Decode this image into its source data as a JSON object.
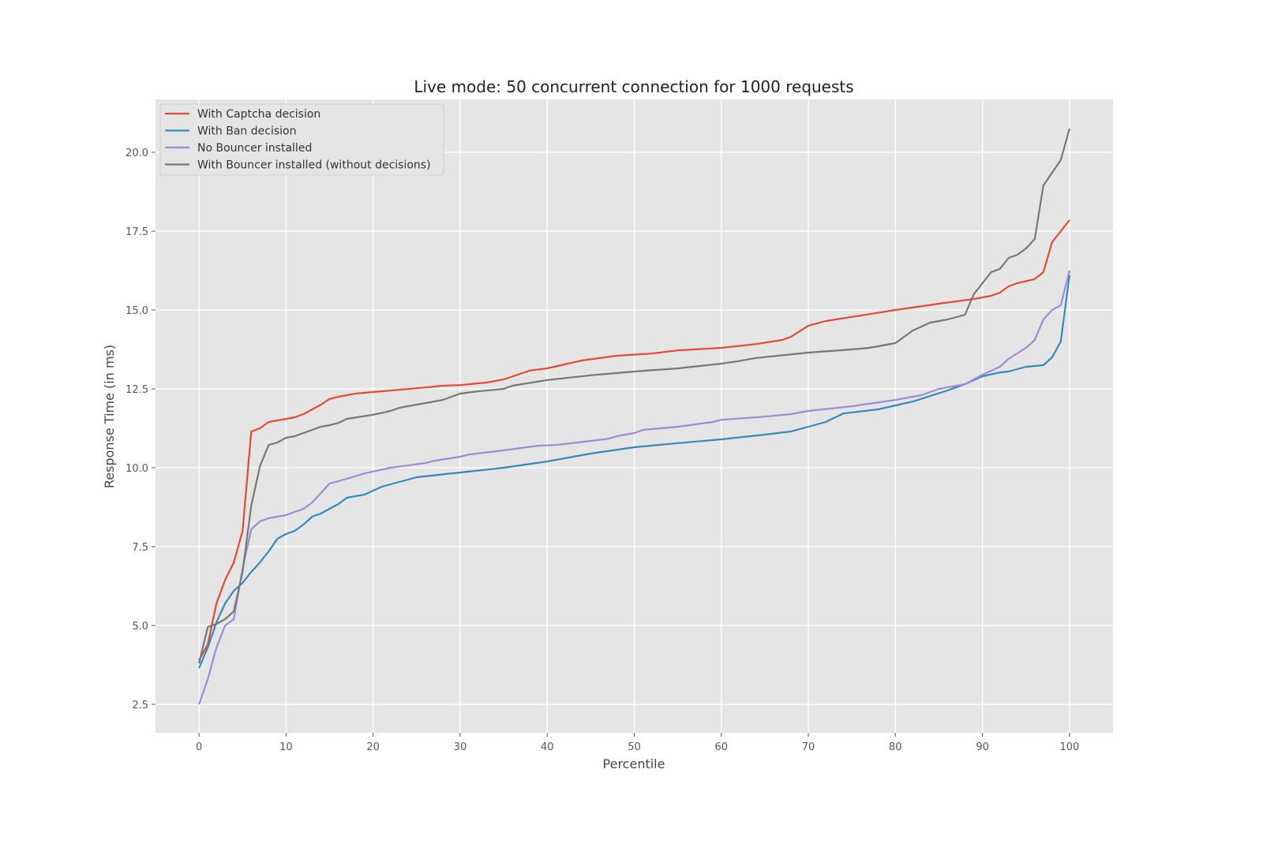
{
  "chart_data": {
    "type": "line",
    "title": "Live mode: 50 concurrent connection for 1000 requests",
    "xlabel": "Percentile",
    "ylabel": "Response Time (in ms)",
    "xlim": [
      -5,
      105
    ],
    "ylim": [
      1.6,
      21.675
    ],
    "xticks": [
      0,
      10,
      20,
      30,
      40,
      50,
      60,
      70,
      80,
      90,
      100
    ],
    "xtick_labels": [
      "0",
      "10",
      "20",
      "30",
      "40",
      "50",
      "60",
      "70",
      "80",
      "90",
      "100"
    ],
    "yticks": [
      2.5,
      5.0,
      7.5,
      10.0,
      12.5,
      15.0,
      17.5,
      20.0
    ],
    "ytick_labels": [
      "2.5",
      "5.0",
      "7.5",
      "10.0",
      "12.5",
      "15.0",
      "17.5",
      "20.0"
    ],
    "grid": true,
    "legend_position": "top-left",
    "series": [
      {
        "name": "With Captcha decision",
        "color": "#E24A33",
        "x": [
          0,
          1,
          2,
          3,
          4,
          5,
          6,
          7,
          8,
          9,
          10,
          11,
          12,
          13,
          14,
          15,
          16,
          18,
          20,
          25,
          28,
          30,
          33,
          35,
          38,
          40,
          44,
          48,
          52,
          55,
          60,
          64,
          67,
          68,
          70,
          72,
          75,
          80,
          85,
          89,
          91,
          92,
          93,
          94,
          96,
          97,
          98,
          100
        ],
        "y": [
          3.9,
          4.4,
          5.7,
          6.45,
          7.0,
          8.0,
          11.15,
          11.25,
          11.45,
          11.5,
          11.55,
          11.6,
          11.7,
          11.85,
          12.0,
          12.18,
          12.25,
          12.35,
          12.4,
          12.52,
          12.6,
          12.62,
          12.7,
          12.8,
          13.08,
          13.15,
          13.4,
          13.55,
          13.62,
          13.72,
          13.8,
          13.92,
          14.05,
          14.15,
          14.5,
          14.65,
          14.78,
          15.0,
          15.2,
          15.35,
          15.45,
          15.55,
          15.75,
          15.85,
          15.98,
          16.2,
          17.15,
          17.85
        ]
      },
      {
        "name": "With Ban decision",
        "color": "#348ABD",
        "x": [
          0,
          1,
          2,
          3,
          4,
          5,
          6,
          7,
          8,
          9,
          10,
          11,
          12,
          13,
          14,
          15,
          16,
          17,
          19,
          21,
          23,
          25,
          30,
          35,
          40,
          45,
          50,
          55,
          60,
          65,
          68,
          70,
          72,
          74,
          78,
          82,
          86,
          88,
          90,
          92,
          93,
          95,
          97,
          98,
          99,
          100
        ],
        "y": [
          3.65,
          4.3,
          5.1,
          5.7,
          6.1,
          6.35,
          6.7,
          7.0,
          7.35,
          7.75,
          7.9,
          8.0,
          8.2,
          8.45,
          8.55,
          8.7,
          8.85,
          9.05,
          9.15,
          9.4,
          9.55,
          9.7,
          9.85,
          10.0,
          10.2,
          10.45,
          10.65,
          10.78,
          10.9,
          11.05,
          11.15,
          11.3,
          11.45,
          11.72,
          11.85,
          12.1,
          12.45,
          12.65,
          12.9,
          13.02,
          13.05,
          13.2,
          13.25,
          13.5,
          14.0,
          16.1
        ]
      },
      {
        "name": "No Bouncer installed",
        "color": "#988ED5",
        "x": [
          0,
          1,
          2,
          3,
          4,
          5,
          6,
          7,
          8,
          10,
          12,
          13,
          15,
          17,
          19,
          22,
          26,
          27,
          30,
          31,
          35,
          39,
          41,
          45,
          47,
          48,
          50,
          51,
          55,
          59,
          60,
          65,
          68,
          70,
          75,
          80,
          83,
          85,
          88,
          90,
          92,
          93,
          95,
          96,
          97,
          98,
          99,
          100
        ],
        "y": [
          2.5,
          3.3,
          4.3,
          5.0,
          5.2,
          6.8,
          8.05,
          8.3,
          8.4,
          8.5,
          8.7,
          8.9,
          9.5,
          9.65,
          9.82,
          10.0,
          10.15,
          10.22,
          10.35,
          10.42,
          10.55,
          10.7,
          10.72,
          10.85,
          10.92,
          11.0,
          11.1,
          11.2,
          11.3,
          11.45,
          11.52,
          11.62,
          11.7,
          11.8,
          11.95,
          12.15,
          12.3,
          12.5,
          12.65,
          12.95,
          13.2,
          13.45,
          13.8,
          14.05,
          14.7,
          15.0,
          15.15,
          16.25
        ]
      },
      {
        "name": "With Bouncer installed (without decisions)",
        "color": "#777777",
        "x": [
          0,
          1,
          2,
          3,
          4,
          5,
          6,
          7,
          8,
          9,
          10,
          11,
          13,
          14,
          15,
          16,
          17,
          20,
          22,
          23,
          25,
          28,
          30,
          32,
          35,
          36,
          40,
          45,
          50,
          55,
          60,
          62,
          64,
          70,
          75,
          77,
          80,
          82,
          84,
          86,
          88,
          89,
          91,
          92,
          93,
          94,
          95,
          96,
          97,
          99,
          100
        ],
        "y": [
          3.8,
          4.95,
          5.05,
          5.2,
          5.45,
          6.7,
          8.8,
          10.05,
          10.72,
          10.8,
          10.95,
          11.0,
          11.2,
          11.3,
          11.35,
          11.42,
          11.55,
          11.68,
          11.8,
          11.9,
          12.0,
          12.15,
          12.35,
          12.42,
          12.5,
          12.6,
          12.78,
          12.93,
          13.05,
          13.15,
          13.3,
          13.38,
          13.48,
          13.65,
          13.75,
          13.8,
          13.95,
          14.35,
          14.6,
          14.7,
          14.85,
          15.5,
          16.2,
          16.3,
          16.65,
          16.75,
          16.95,
          17.25,
          18.95,
          19.75,
          20.75
        ]
      }
    ]
  }
}
